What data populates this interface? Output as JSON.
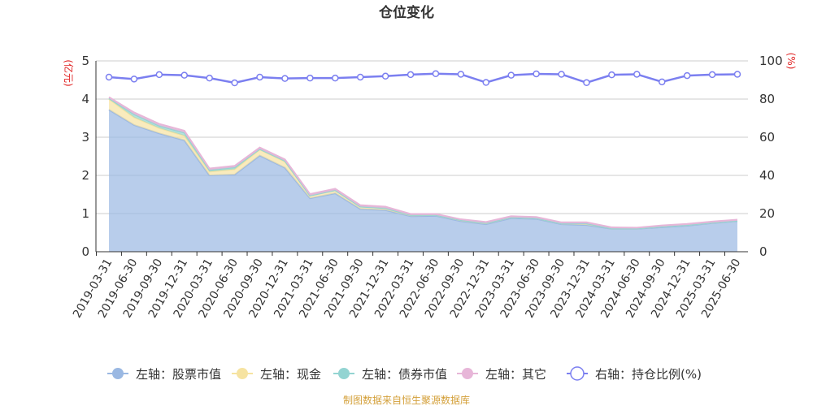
{
  "chart_data": {
    "type": "area",
    "title": "仓位变化",
    "left_axis_label": "(亿元)",
    "right_axis_label": "(%)",
    "left_ylim": [
      0,
      5
    ],
    "right_ylim": [
      0,
      100
    ],
    "left_ticks": [
      "0",
      "1",
      "2",
      "3",
      "4",
      "5"
    ],
    "right_ticks": [
      "0",
      "20",
      "40",
      "60",
      "80",
      "100"
    ],
    "grid": true,
    "legend_position": "bottom",
    "categories": [
      "2019-03-31",
      "2019-06-30",
      "2019-09-30",
      "2019-12-31",
      "2020-03-31",
      "2020-06-30",
      "2020-09-30",
      "2020-12-31",
      "2021-03-31",
      "2021-06-30",
      "2021-09-30",
      "2021-12-31",
      "2022-03-31",
      "2022-06-30",
      "2022-09-30",
      "2022-12-31",
      "2023-03-31",
      "2023-06-30",
      "2023-09-30",
      "2023-12-31",
      "2024-03-31",
      "2024-06-30",
      "2024-09-30",
      "2024-12-31",
      "2025-03-31",
      "2025-06-30"
    ],
    "stacked_series": [
      {
        "name": "左轴：股票市值",
        "axis": "left",
        "color": "#9ab8e2",
        "values": [
          3.72,
          3.32,
          3.1,
          2.92,
          2.0,
          2.02,
          2.52,
          2.2,
          1.4,
          1.53,
          1.12,
          1.09,
          0.93,
          0.94,
          0.8,
          0.72,
          0.88,
          0.86,
          0.72,
          0.7,
          0.6,
          0.6,
          0.64,
          0.68,
          0.75,
          0.8
        ]
      },
      {
        "name": "左轴：现金",
        "axis": "left",
        "color": "#f6e3a1",
        "values": [
          0.28,
          0.2,
          0.14,
          0.12,
          0.1,
          0.14,
          0.16,
          0.16,
          0.07,
          0.08,
          0.06,
          0.05,
          0.03,
          0.02,
          0.03,
          0.03,
          0.02,
          0.02,
          0.02,
          0.04,
          0.01,
          0.01,
          0.02,
          0.02,
          0.01,
          0.01
        ]
      },
      {
        "name": "左轴：债券市值",
        "axis": "left",
        "color": "#93d4d2",
        "values": [
          0.02,
          0.08,
          0.06,
          0.08,
          0.04,
          0.05,
          0.01,
          0.02,
          0.0,
          0.0,
          0.0,
          0.0,
          0.0,
          0.0,
          0.0,
          0.0,
          0.0,
          0.0,
          0.0,
          0.0,
          0.0,
          0.0,
          0.0,
          0.0,
          0.0,
          0.0
        ]
      },
      {
        "name": "左轴：其它",
        "axis": "left",
        "color": "#e7b6d8",
        "values": [
          0.03,
          0.05,
          0.05,
          0.05,
          0.04,
          0.04,
          0.04,
          0.04,
          0.04,
          0.04,
          0.04,
          0.04,
          0.03,
          0.03,
          0.02,
          0.03,
          0.03,
          0.03,
          0.03,
          0.03,
          0.03,
          0.02,
          0.03,
          0.03,
          0.03,
          0.03
        ]
      }
    ],
    "line_series": {
      "name": "右轴：持仓比例(%)",
      "axis": "right",
      "color": "#7b7ff0",
      "values": [
        91.5,
        90.5,
        92.8,
        92.5,
        91,
        88.5,
        91.5,
        90.8,
        91,
        91,
        91.5,
        92,
        92.8,
        93.3,
        93,
        88.7,
        92.5,
        93.2,
        93,
        88.6,
        92.7,
        93,
        89,
        92.3,
        92.8,
        93
      ]
    }
  },
  "source_note": "制图数据来自恒生聚源数据库",
  "colors": {
    "axis_label": "#e02020",
    "source": "#d4a03a"
  }
}
